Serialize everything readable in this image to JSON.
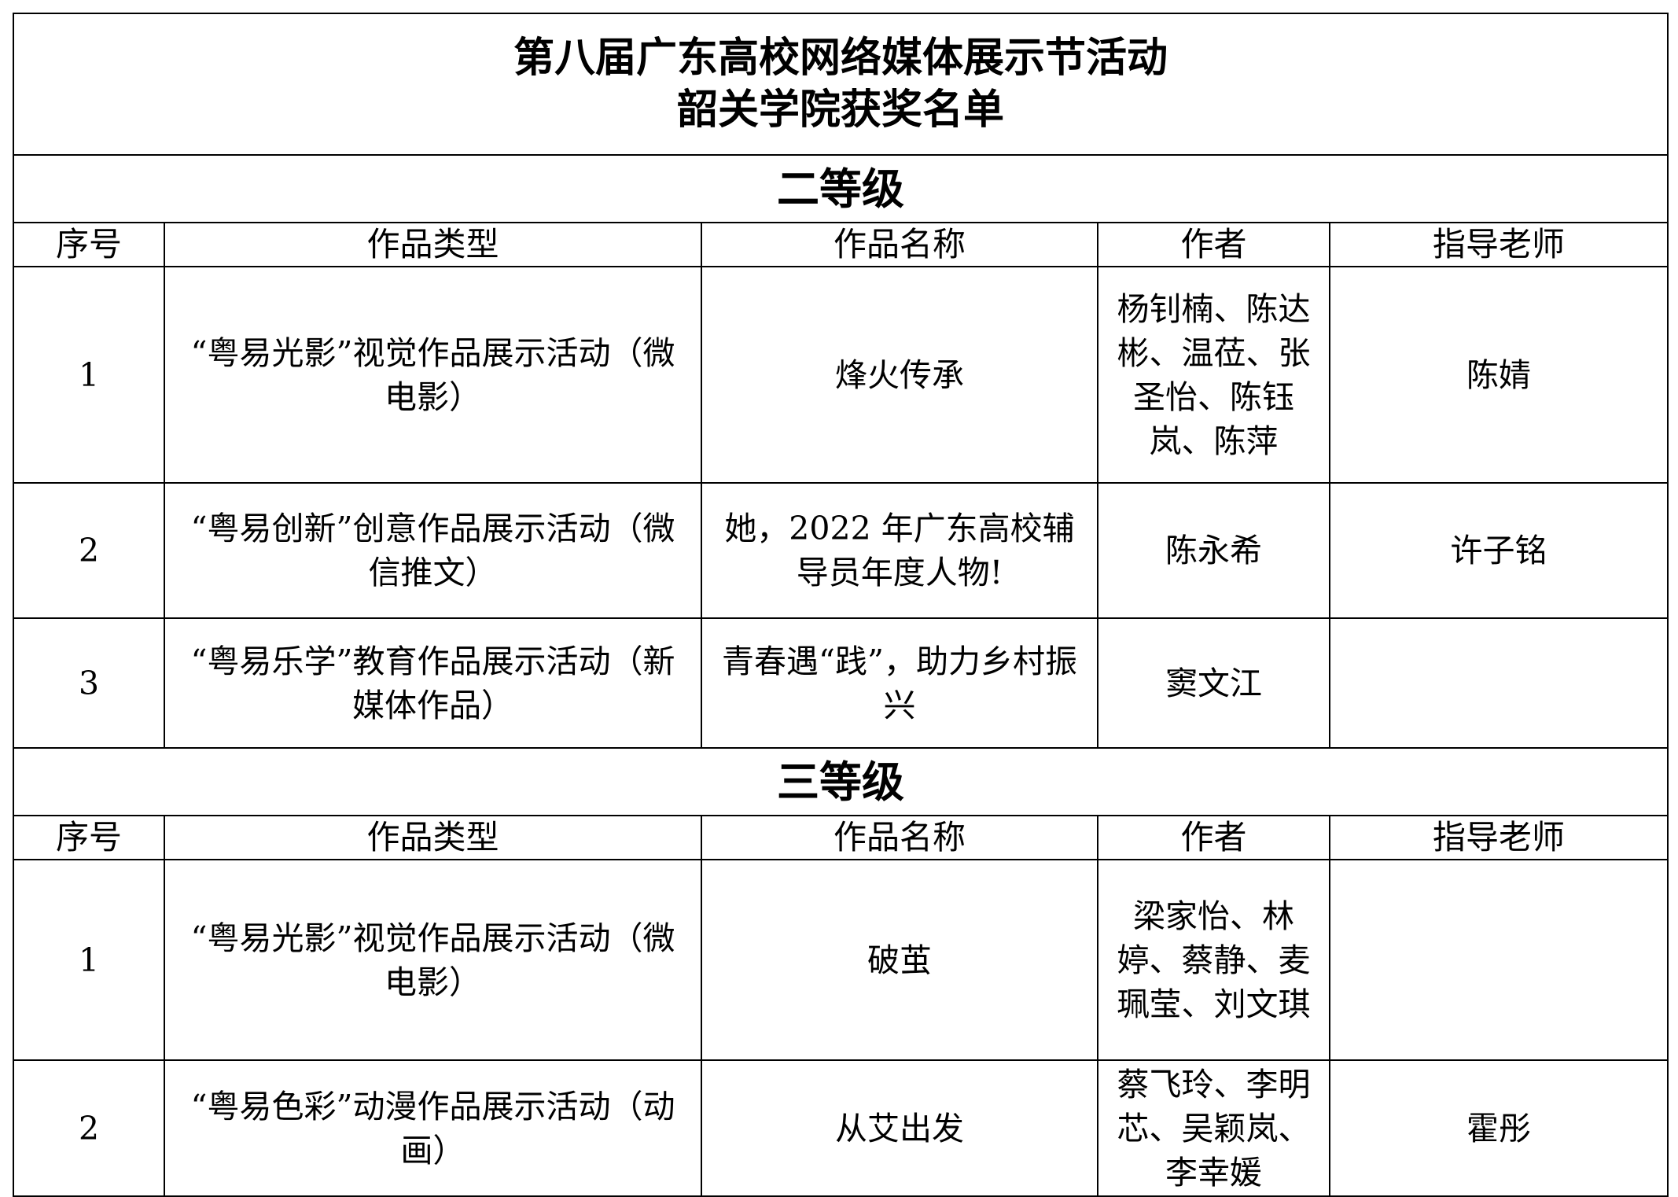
{
  "title": {
    "line1": "第八届广东高校网络媒体展示节活动",
    "line2": "韶关学院获奖名单"
  },
  "headers": [
    "序号",
    "作品类型",
    "作品名称",
    "作者",
    "指导老师"
  ],
  "sections": [
    {
      "name": "二等级",
      "rows": [
        {
          "no": "1",
          "type": "“粤易光影”视觉作品展示活动（微电影）",
          "work": "烽火传承",
          "authors": "杨钊楠、陈达彬、温莅、张圣怡、陈钰岚、陈萍",
          "advisor": "陈婧"
        },
        {
          "no": "2",
          "type": "“粤易创新”创意作品展示活动（微信推文）",
          "work": "她，2022 年广东高校辅导员年度人物!",
          "authors": "陈永希",
          "advisor": "许子铭"
        },
        {
          "no": "3",
          "type": "“粤易乐学”教育作品展示活动（新媒体作品）",
          "work": "青春遇“践”，助力乡村振兴",
          "authors": "窦文江",
          "advisor": ""
        }
      ]
    },
    {
      "name": "三等级",
      "rows": [
        {
          "no": "1",
          "type": "“粤易光影”视觉作品展示活动（微电影）",
          "work": "破茧",
          "authors": "梁家怡、林婷、蔡静、麦珮莹、刘文琪",
          "advisor": ""
        },
        {
          "no": "2",
          "type": "“粤易色彩”动漫作品展示活动（动画）",
          "work": "从艾出发",
          "authors": "蔡飞玲、李明芯、吴颖岚、李幸媛",
          "advisor": "霍彤"
        }
      ]
    }
  ]
}
